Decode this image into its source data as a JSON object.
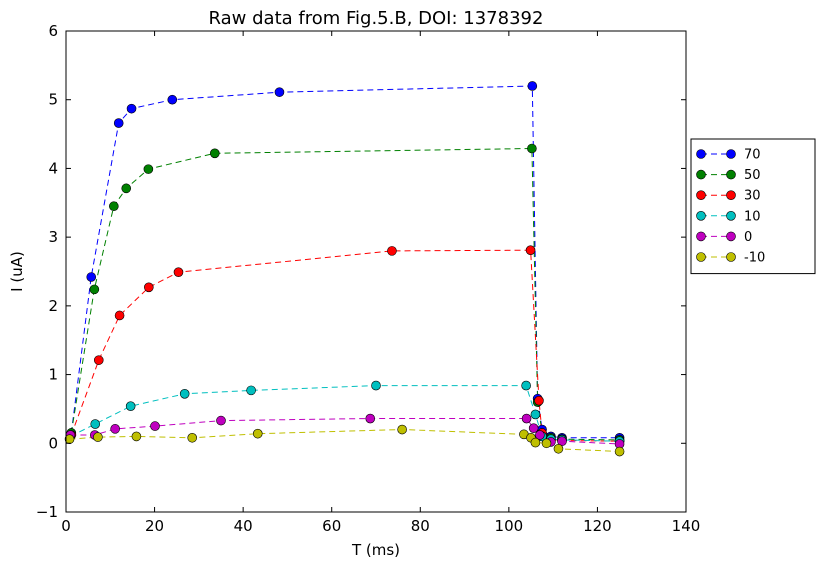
{
  "chart_data": {
    "type": "line",
    "title": "Raw data from Fig.5.B, DOI: 1378392",
    "xlabel": "T (ms)",
    "ylabel": "I (uA)",
    "xlim": [
      0,
      140
    ],
    "ylim": [
      -1,
      6
    ],
    "xticks": [
      "0",
      "20",
      "40",
      "60",
      "80",
      "100",
      "120",
      "140"
    ],
    "yticks": [
      "−1",
      "0",
      "1",
      "2",
      "3",
      "4",
      "5",
      "6"
    ],
    "grid": false,
    "legend_position": "right",
    "series": [
      {
        "name": "70",
        "color": "#0000ff",
        "points": [
          [
            1.2,
            0.15
          ],
          [
            5.7,
            2.42
          ],
          [
            11.9,
            4.66
          ],
          [
            14.8,
            4.87
          ],
          [
            24.0,
            5.0
          ],
          [
            48.2,
            5.11
          ],
          [
            105.3,
            5.2
          ],
          [
            106.5,
            0.65
          ],
          [
            107.5,
            0.2
          ],
          [
            109.5,
            0.1
          ],
          [
            112.0,
            0.08
          ],
          [
            125.0,
            0.08
          ]
        ]
      },
      {
        "name": "50",
        "color": "#008000",
        "points": [
          [
            1.2,
            0.15
          ],
          [
            6.4,
            2.24
          ],
          [
            10.8,
            3.45
          ],
          [
            13.6,
            3.71
          ],
          [
            18.6,
            3.99
          ],
          [
            33.6,
            4.22
          ],
          [
            105.2,
            4.29
          ],
          [
            106.5,
            0.6
          ],
          [
            107.5,
            0.15
          ],
          [
            109.5,
            0.08
          ],
          [
            112.0,
            0.06
          ],
          [
            125.0,
            0.05
          ]
        ]
      },
      {
        "name": "30",
        "color": "#ff0000",
        "points": [
          [
            1.2,
            0.12
          ],
          [
            7.4,
            1.21
          ],
          [
            12.1,
            1.86
          ],
          [
            18.7,
            2.27
          ],
          [
            25.4,
            2.49
          ],
          [
            73.6,
            2.8
          ],
          [
            104.9,
            2.81
          ],
          [
            106.8,
            0.62
          ],
          [
            107.5,
            0.15
          ],
          [
            109.5,
            0.05
          ],
          [
            112.0,
            0.04
          ],
          [
            125.0,
            0.03
          ]
        ]
      },
      {
        "name": "10",
        "color": "#00bfbf",
        "points": [
          [
            1.0,
            0.1
          ],
          [
            6.6,
            0.28
          ],
          [
            14.6,
            0.54
          ],
          [
            26.8,
            0.72
          ],
          [
            41.8,
            0.77
          ],
          [
            70.0,
            0.84
          ],
          [
            103.9,
            0.84
          ],
          [
            106.0,
            0.42
          ],
          [
            107.5,
            0.1
          ],
          [
            109.5,
            0.06
          ],
          [
            112.0,
            0.05
          ],
          [
            125.0,
            0.03
          ]
        ]
      },
      {
        "name": "0",
        "color": "#bf00bf",
        "points": [
          [
            1.0,
            0.12
          ],
          [
            6.5,
            0.12
          ],
          [
            11.1,
            0.21
          ],
          [
            20.1,
            0.25
          ],
          [
            35.0,
            0.33
          ],
          [
            68.7,
            0.36
          ],
          [
            104.0,
            0.36
          ],
          [
            105.6,
            0.22
          ],
          [
            107.0,
            0.12
          ],
          [
            109.5,
            0.02
          ],
          [
            112.0,
            0.03
          ],
          [
            125.0,
            -0.01
          ]
        ]
      },
      {
        "name": "-10",
        "color": "#bfbf00",
        "points": [
          [
            0.8,
            0.06
          ],
          [
            7.2,
            0.09
          ],
          [
            15.9,
            0.1
          ],
          [
            28.5,
            0.08
          ],
          [
            43.3,
            0.14
          ],
          [
            75.9,
            0.2
          ],
          [
            103.4,
            0.13
          ],
          [
            105.0,
            0.08
          ],
          [
            106.0,
            0.01
          ],
          [
            108.5,
            0.0
          ],
          [
            111.2,
            -0.08
          ],
          [
            125.0,
            -0.12
          ]
        ]
      }
    ]
  }
}
